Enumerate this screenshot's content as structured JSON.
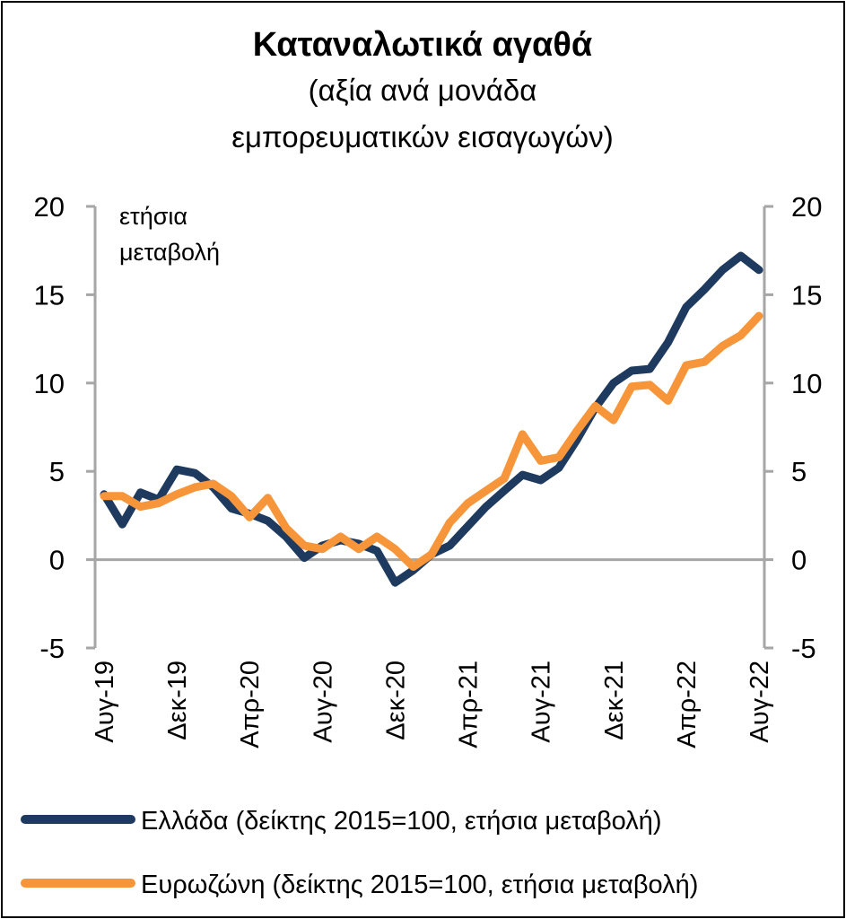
{
  "chart_data": {
    "type": "line",
    "title": "Καταναλωτικά αγαθά",
    "subtitle_lines": [
      "(αξία ανά μονάδα",
      "εμπορευματικών εισαγωγών)"
    ],
    "y_annotation_lines": [
      "ετήσια",
      "μεταβολή"
    ],
    "ylim": [
      -5,
      20
    ],
    "yticks": [
      "-5",
      "0",
      "5",
      "10",
      "15",
      "20"
    ],
    "y2ticks": [
      "-5",
      "0",
      "5",
      "10",
      "15",
      "20"
    ],
    "x_tick_labels": [
      {
        "index": 0,
        "label": "Αυγ-19"
      },
      {
        "index": 4,
        "label": "Δεκ-19"
      },
      {
        "index": 8,
        "label": "Απρ-20"
      },
      {
        "index": 12,
        "label": "Αυγ-20"
      },
      {
        "index": 16,
        "label": "Δεκ-20"
      },
      {
        "index": 20,
        "label": "Απρ-21"
      },
      {
        "index": 24,
        "label": "Αυγ-21"
      },
      {
        "index": 28,
        "label": "Δεκ-21"
      },
      {
        "index": 32,
        "label": "Απρ-22"
      },
      {
        "index": 36,
        "label": "Αυγ-22"
      }
    ],
    "grid": false,
    "legend_position": "bottom",
    "series": [
      {
        "name": "Ελλάδα (δείκτης 2015=100, ετήσια μεταβολή)",
        "color": "#1f3a5f",
        "values": [
          3.7,
          2.0,
          3.8,
          3.4,
          5.1,
          4.9,
          4.1,
          2.9,
          2.6,
          2.2,
          1.3,
          0.1,
          0.8,
          1.1,
          0.9,
          0.5,
          -1.3,
          -0.6,
          0.3,
          0.8,
          1.9,
          3.0,
          3.9,
          4.8,
          4.5,
          5.2,
          6.8,
          8.6,
          10.0,
          10.7,
          10.8,
          12.3,
          14.3,
          15.3,
          16.4,
          17.2,
          16.4
        ]
      },
      {
        "name": "Ευρωζώνη (δείκτης 2015=100, ετήσια μεταβολή)",
        "color": "#f7953b",
        "values": [
          3.6,
          3.6,
          3.0,
          3.2,
          3.7,
          4.1,
          4.3,
          3.6,
          2.4,
          3.5,
          1.8,
          0.8,
          0.6,
          1.3,
          0.6,
          1.3,
          0.6,
          -0.4,
          0.3,
          2.1,
          3.2,
          3.9,
          4.6,
          7.1,
          5.6,
          5.8,
          7.3,
          8.7,
          7.9,
          9.8,
          9.9,
          9.0,
          11.0,
          11.2,
          12.1,
          12.7,
          13.8
        ]
      }
    ]
  }
}
